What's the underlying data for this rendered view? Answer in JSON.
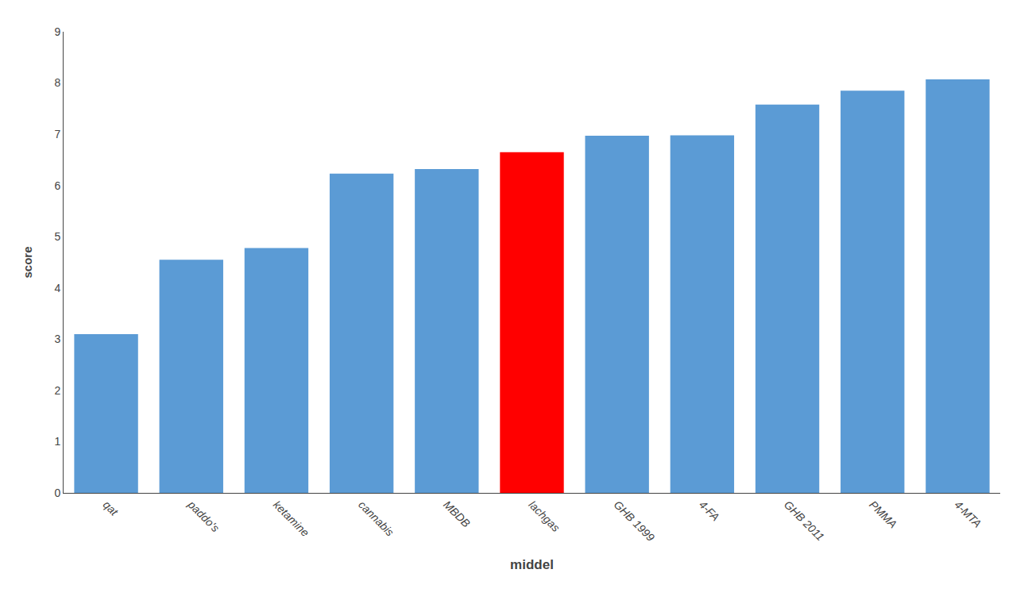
{
  "chart_data": {
    "type": "bar",
    "categories": [
      "qat",
      "paddo's",
      "ketamine",
      "cannabis",
      "MBDB",
      "lachgas",
      "GHB 1999",
      "4-FA",
      "GHB 2011",
      "PMMA",
      "4-MTA"
    ],
    "values": [
      3.1,
      4.55,
      4.78,
      6.23,
      6.32,
      6.65,
      6.97,
      6.98,
      7.58,
      7.85,
      8.07
    ],
    "colors": [
      "#5b9bd5",
      "#5b9bd5",
      "#5b9bd5",
      "#5b9bd5",
      "#5b9bd5",
      "#ff0000",
      "#5b9bd5",
      "#5b9bd5",
      "#5b9bd5",
      "#5b9bd5",
      "#5b9bd5"
    ],
    "xlabel": "middel",
    "ylabel": "score",
    "ylim": [
      0,
      9
    ],
    "yticks": [
      0,
      1,
      2,
      3,
      4,
      5,
      6,
      7,
      8,
      9
    ],
    "grid": false
  }
}
